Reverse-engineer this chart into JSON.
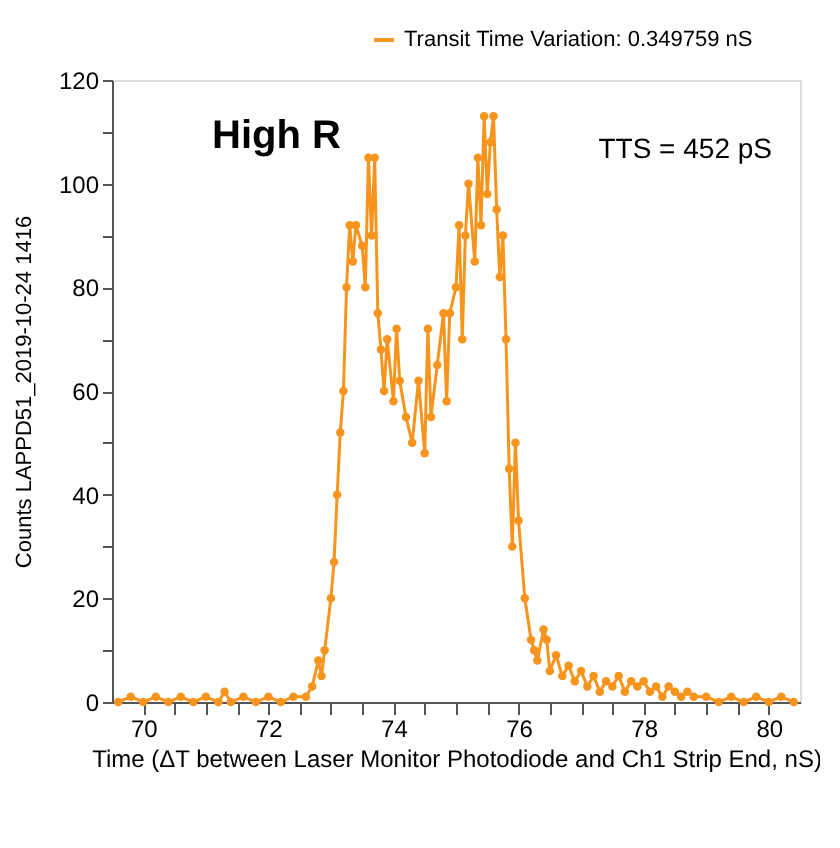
{
  "chart_data": {
    "type": "line",
    "xlabel": "Time (ΔT between Laser Monitor Photodiode and Ch1 Strip End, nS)",
    "ylabel": "Counts    LAPPD51_2019-10-24    1416",
    "annotations": [
      "High R",
      "TTS = 452 pS"
    ],
    "x": [
      69.6,
      69.8,
      70.0,
      70.2,
      70.4,
      70.6,
      70.8,
      71.0,
      71.2,
      71.3,
      71.4,
      71.6,
      71.8,
      72.0,
      72.2,
      72.4,
      72.6,
      72.7,
      72.8,
      72.85,
      72.9,
      73.0,
      73.05,
      73.1,
      73.15,
      73.2,
      73.25,
      73.3,
      73.35,
      73.4,
      73.5,
      73.55,
      73.6,
      73.65,
      73.7,
      73.75,
      73.8,
      73.85,
      73.9,
      74.0,
      74.05,
      74.1,
      74.2,
      74.3,
      74.4,
      74.5,
      74.55,
      74.6,
      74.7,
      74.8,
      74.85,
      74.9,
      75.0,
      75.05,
      75.1,
      75.15,
      75.2,
      75.3,
      75.35,
      75.4,
      75.45,
      75.5,
      75.55,
      75.6,
      75.65,
      75.7,
      75.75,
      75.8,
      75.85,
      75.9,
      75.95,
      76.0,
      76.1,
      76.2,
      76.25,
      76.3,
      76.4,
      76.45,
      76.5,
      76.6,
      76.7,
      76.8,
      76.9,
      77.0,
      77.1,
      77.2,
      77.3,
      77.4,
      77.5,
      77.6,
      77.7,
      77.8,
      77.9,
      78.0,
      78.1,
      78.2,
      78.3,
      78.4,
      78.5,
      78.6,
      78.7,
      78.8,
      79.0,
      79.2,
      79.4,
      79.6,
      79.8,
      80.0,
      80.2,
      80.4
    ],
    "series": [
      {
        "name": "Transit Time Variation: 0.349759 nS",
        "color": "#f7941d",
        "values": [
          0,
          1,
          0,
          1,
          0,
          1,
          0,
          1,
          0,
          2,
          0,
          1,
          0,
          1,
          0,
          1,
          1,
          3,
          8,
          5,
          10,
          20,
          27,
          40,
          52,
          60,
          80,
          92,
          85,
          92,
          88,
          80,
          105,
          90,
          105,
          75,
          68,
          60,
          70,
          58,
          72,
          62,
          55,
          50,
          62,
          48,
          72,
          55,
          65,
          75,
          58,
          75,
          80,
          92,
          70,
          90,
          100,
          85,
          105,
          92,
          113,
          98,
          108,
          113,
          95,
          82,
          90,
          70,
          45,
          30,
          50,
          35,
          20,
          12,
          10,
          8,
          14,
          12,
          6,
          9,
          5,
          7,
          4,
          6,
          3,
          5,
          2,
          4,
          3,
          5,
          2,
          4,
          3,
          4,
          2,
          3,
          1,
          3,
          2,
          1,
          2,
          1,
          1,
          0,
          1,
          0,
          1,
          0,
          1,
          0
        ]
      }
    ],
    "xlim": [
      69.5,
      80.5
    ],
    "ylim": [
      0,
      120
    ],
    "xticks": [
      70,
      {
        "value": 70.5,
        "label": null
      },
      {
        "value": 71,
        "label": null
      },
      {
        "value": 71.5,
        "label": null
      },
      72,
      {
        "value": 72.5,
        "label": null
      },
      {
        "value": 73,
        "label": null
      },
      {
        "value": 73.5,
        "label": null
      },
      74,
      {
        "value": 74.5,
        "label": null
      },
      {
        "value": 75,
        "label": null
      },
      {
        "value": 75.5,
        "label": null
      },
      76,
      {
        "value": 76.5,
        "label": null
      },
      {
        "value": 77,
        "label": null
      },
      {
        "value": 77.5,
        "label": null
      },
      78,
      {
        "value": 78.5,
        "label": null
      },
      {
        "value": 79,
        "label": null
      },
      {
        "value": 79.5,
        "label": null
      },
      80
    ],
    "yticks": [
      0,
      {
        "value": 10,
        "label": null
      },
      20,
      {
        "value": 30,
        "label": null
      },
      40,
      {
        "value": 50,
        "label": null
      },
      60,
      {
        "value": 70,
        "label": null
      },
      80,
      {
        "value": 90,
        "label": null
      },
      100,
      {
        "value": 110,
        "label": null
      },
      120
    ],
    "grid": false,
    "legend": "top right",
    "marker": "circle",
    "line_style": "solid"
  }
}
